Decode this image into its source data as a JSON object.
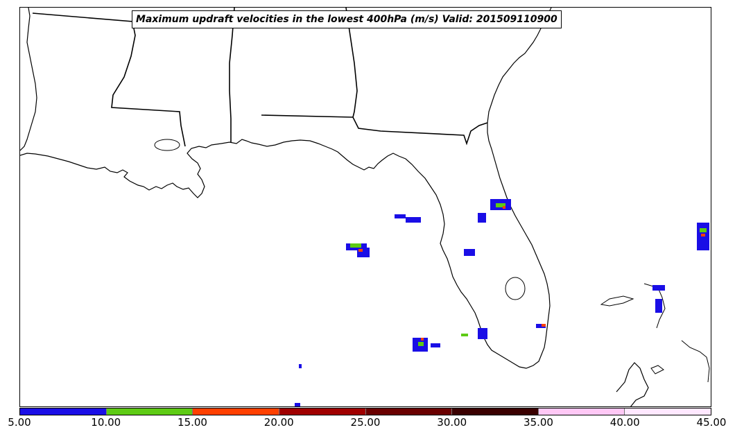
{
  "title": "Maximum updraft velocities in the lowest 400hPa (m/s) Valid: 201509110900",
  "colorbar": {
    "ticks": [
      "5.00",
      "10.00",
      "15.00",
      "20.00",
      "25.00",
      "30.00",
      "35.00",
      "40.00",
      "45.00"
    ],
    "colors": [
      "#1a0ee6",
      "#5ecb14",
      "#ff4000",
      "#a00000",
      "#6a0000",
      "#3a0000",
      "#ffc8f5",
      "#ffe8ff"
    ]
  },
  "chart_data": {
    "type": "map",
    "title": "Maximum updraft velocities in the lowest 400hPa (m/s) Valid: 201509110900",
    "variable": "Maximum updraft velocity (m/s)",
    "valid_time": "201509110900",
    "colorbar_range": [
      5,
      45
    ],
    "colorbar_bins": [
      5,
      10,
      15,
      20,
      25,
      30,
      35,
      40,
      45
    ],
    "legend_placement": "bottom",
    "regions_shown": [
      "Louisiana",
      "Mississippi",
      "Alabama",
      "Georgia",
      "Florida",
      "Gulf of Mexico",
      "Bahamas",
      "Cuba"
    ]
  }
}
